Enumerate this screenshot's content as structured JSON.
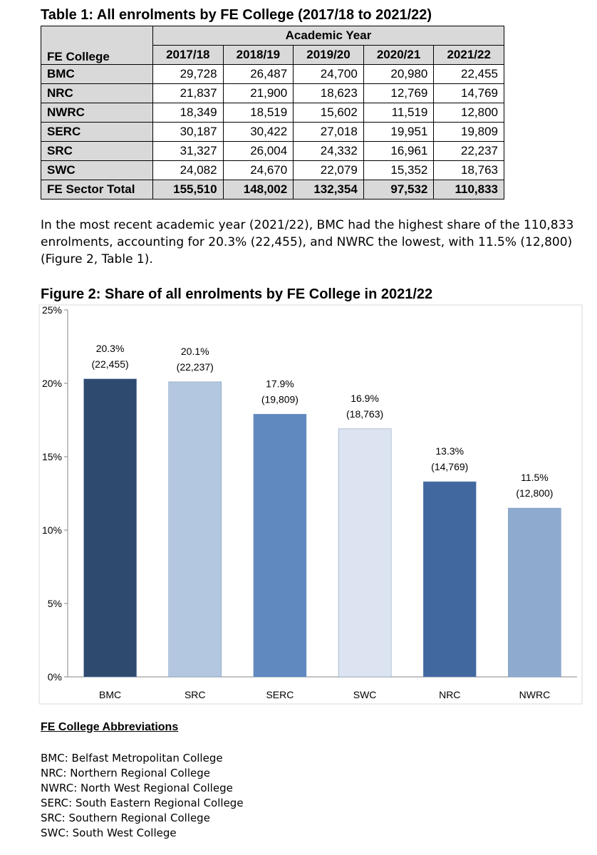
{
  "table": {
    "title": "Table 1: All enrolments by FE College (2017/18 to 2021/22)",
    "group_header": "Academic Year",
    "row_header": "FE College",
    "years": [
      "2017/18",
      "2018/19",
      "2019/20",
      "2020/21",
      "2021/22"
    ],
    "rows": [
      {
        "college": "BMC",
        "values": [
          "29,728",
          "26,487",
          "24,700",
          "20,980",
          "22,455"
        ]
      },
      {
        "college": "NRC",
        "values": [
          "21,837",
          "21,900",
          "18,623",
          "12,769",
          "14,769"
        ]
      },
      {
        "college": "NWRC",
        "values": [
          "18,349",
          "18,519",
          "15,602",
          "11,519",
          "12,800"
        ]
      },
      {
        "college": "SERC",
        "values": [
          "30,187",
          "30,422",
          "27,018",
          "19,951",
          "19,809"
        ]
      },
      {
        "college": "SRC",
        "values": [
          "31,327",
          "26,004",
          "24,332",
          "16,961",
          "22,237"
        ]
      },
      {
        "college": "SWC",
        "values": [
          "24,082",
          "24,670",
          "22,079",
          "15,352",
          "18,763"
        ]
      }
    ],
    "total": {
      "college": "FE Sector Total",
      "values": [
        "155,510",
        "148,002",
        "132,354",
        "97,532",
        "110,833"
      ]
    }
  },
  "paragraph": "In the most recent academic year (2021/22), BMC had the highest share of the 110,833 enrolments, accounting for 20.3% (22,455), and NWRC the lowest, with 11.5% (12,800) (Figure 2, Table 1).",
  "chart_data": {
    "type": "bar",
    "title": "Figure 2: Share of all enrolments by FE College in 2021/22",
    "categories": [
      "BMC",
      "SRC",
      "SERC",
      "SWC",
      "NRC",
      "NWRC"
    ],
    "values": [
      20.3,
      20.1,
      17.9,
      16.9,
      13.3,
      11.5
    ],
    "value_labels": [
      "20.3%",
      "20.1%",
      "17.9%",
      "16.9%",
      "13.3%",
      "11.5%"
    ],
    "count_labels": [
      "(22,455)",
      "(22,237)",
      "(19,809)",
      "(18,763)",
      "(14,769)",
      "(12,800)"
    ],
    "colors": [
      "#2e4a6e",
      "#b3c7e0",
      "#5f89bf",
      "#dbe4f0",
      "#41689f",
      "#8eabcf"
    ],
    "ylim": [
      0,
      25
    ],
    "yticks": [
      0,
      5,
      10,
      15,
      20,
      25
    ],
    "ytick_labels": [
      "0%",
      "5%",
      "10%",
      "15%",
      "20%",
      "25%"
    ],
    "grid": false
  },
  "abbreviations": {
    "title": "FE College Abbreviations",
    "items": [
      "BMC: Belfast Metropolitan College",
      "NRC: Northern Regional College",
      "NWRC: North West Regional College",
      "SERC: South Eastern Regional College",
      "SRC: Southern Regional College",
      "SWC: South West College"
    ]
  }
}
